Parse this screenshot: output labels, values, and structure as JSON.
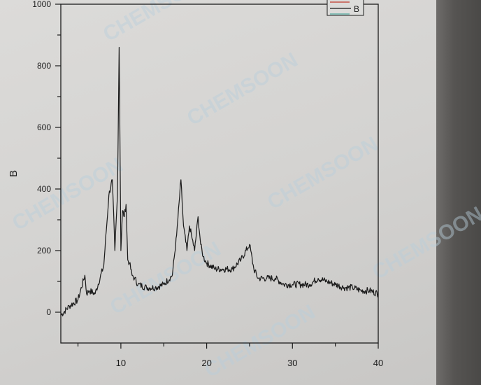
{
  "chart_data": {
    "type": "line",
    "title": "",
    "xlabel": "",
    "ylabel": "B",
    "xlim": [
      3,
      40
    ],
    "ylim": [
      -100,
      1000
    ],
    "x_ticks": [
      10,
      20,
      30,
      40
    ],
    "y_ticks": [
      0,
      200,
      400,
      600,
      800,
      1000
    ],
    "grid": false,
    "legend": {
      "placement": "top-right",
      "entries": [
        "B"
      ]
    },
    "series": [
      {
        "name": "B",
        "color": "#1a1a1a",
        "x": [
          3,
          4,
          5,
          5.8,
          6,
          6.3,
          7,
          8,
          8.6,
          9,
          9.3,
          9.6,
          9.8,
          10,
          10.2,
          10.4,
          10.6,
          10.8,
          11,
          11.3,
          11.6,
          12,
          13,
          14,
          15,
          16,
          16.5,
          17,
          17.3,
          17.7,
          18,
          18.3,
          18.6,
          19,
          19.3,
          19.6,
          20,
          21,
          22,
          23,
          24,
          25,
          25.5,
          26,
          27,
          28,
          29,
          30,
          31,
          32,
          33,
          34,
          35,
          36,
          37,
          38,
          39,
          40
        ],
        "y": [
          -10,
          20,
          40,
          120,
          60,
          70,
          60,
          150,
          380,
          430,
          200,
          380,
          860,
          200,
          330,
          310,
          350,
          170,
          160,
          120,
          110,
          90,
          80,
          80,
          90,
          120,
          250,
          430,
          280,
          200,
          280,
          240,
          200,
          310,
          220,
          180,
          160,
          140,
          140,
          140,
          170,
          220,
          140,
          110,
          110,
          110,
          90,
          90,
          90,
          90,
          110,
          100,
          90,
          80,
          80,
          70,
          70,
          60
        ]
      }
    ]
  },
  "watermark": "CHEMSOON",
  "colors": {
    "axis": "#1c1c1c",
    "trace": "#1a1a1a",
    "legend_red": "#c0392b"
  }
}
